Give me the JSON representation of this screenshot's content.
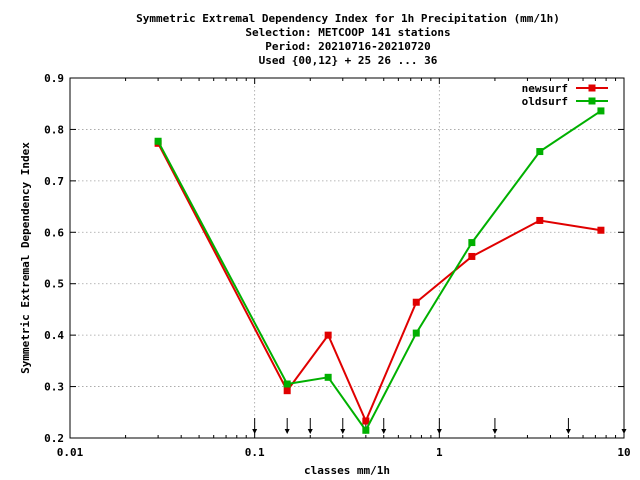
{
  "chart_data": {
    "type": "line",
    "title_lines": [
      "Symmetric Extremal Dependency Index  for 1h Precipitation (mm/1h)",
      "Selection: METCOOP    141 stations",
      "Period: 20210716-20210720",
      "Used {00,12} + 25 26 ... 36"
    ],
    "xlabel": "classes mm/1h",
    "ylabel": "Symmetric Extremal Dependency Index",
    "x_scale": "log",
    "xlim": [
      0.01,
      10
    ],
    "ylim": [
      0.2,
      0.9
    ],
    "x_ticks": [
      0.01,
      0.1,
      1,
      10
    ],
    "x_tick_labels": [
      "0.01",
      "0.1",
      "1",
      "10"
    ],
    "y_ticks": [
      0.2,
      0.3,
      0.4,
      0.5,
      0.6,
      0.7,
      0.8,
      0.9
    ],
    "y_tick_labels": [
      "0.2",
      "0.3",
      "0.4",
      "0.5",
      "0.6",
      "0.7",
      "0.8",
      "0.9"
    ],
    "grid": true,
    "legend_position": "top-right",
    "class_markers": [
      0.1,
      0.15,
      0.2,
      0.3,
      0.4,
      0.5,
      1,
      2,
      5,
      10
    ],
    "x": [
      0.03,
      0.15,
      0.25,
      0.4,
      0.75,
      1.5,
      3.5,
      7.5
    ],
    "series": [
      {
        "name": "newsurf",
        "color": "#e00000",
        "values": [
          0.773,
          0.292,
          0.4,
          0.233,
          0.464,
          0.553,
          0.623,
          0.604
        ]
      },
      {
        "name": "oldsurf",
        "color": "#00b000",
        "values": [
          0.777,
          0.305,
          0.318,
          0.215,
          0.404,
          0.58,
          0.757,
          0.836
        ]
      }
    ]
  }
}
